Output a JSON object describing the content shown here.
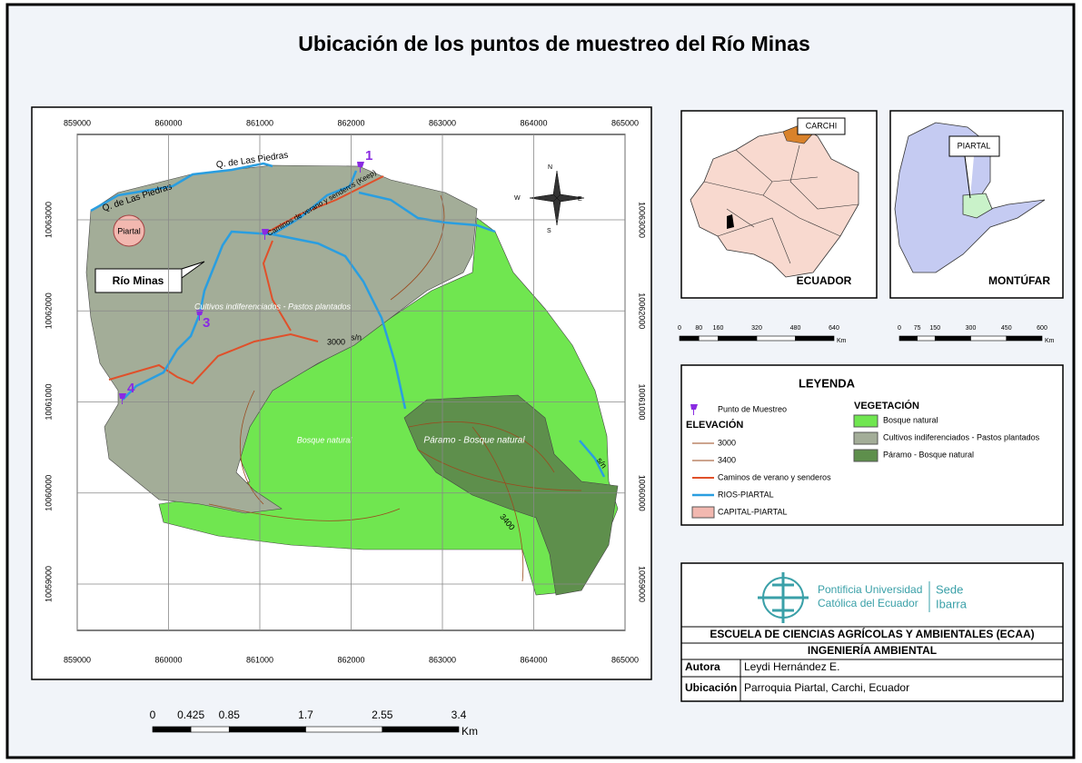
{
  "title": "Ubicación de los puntos de muestreo del Río Minas",
  "map": {
    "eastings": [
      859000,
      860000,
      861000,
      862000,
      863000,
      864000,
      865000
    ],
    "northings": [
      10063000,
      10062000,
      10061000,
      10060000,
      10059000
    ],
    "labels": {
      "stream": "Q. de Las Piedras",
      "road": "Caminos de verano y senderos (Keep)",
      "town": "Piartal",
      "river": "Río Minas",
      "sn": "s/n"
    },
    "points": [
      "1",
      "3",
      "4"
    ],
    "north": {
      "n": "N",
      "s": "S",
      "e": "E",
      "w": "W"
    }
  },
  "scale_bar": {
    "ticks": [
      0,
      0.425,
      0.85,
      1.7,
      2.55,
      3.4
    ],
    "unit": "Km"
  },
  "inset_ecuador": {
    "callout": "CARCHI",
    "name": "ECUADOR",
    "scale": {
      "ticks": [
        0,
        80,
        160,
        320,
        480,
        640
      ],
      "unit": "Km"
    }
  },
  "inset_montufar": {
    "callout": "PIARTAL",
    "name": "MONTÚFAR",
    "scale": {
      "ticks": [
        0,
        75,
        150,
        300,
        450,
        600
      ],
      "unit": "Km"
    }
  },
  "legend": {
    "title": "LEYENDA",
    "point": "Punto de Muestreo",
    "elevation": {
      "title": "ELEVACIÓN",
      "levels": [
        3000,
        3400
      ]
    },
    "roads": "Caminos de verano y senderos",
    "rivers": "RIOS-PIARTAL",
    "capital": "CAPITAL-PIARTAL",
    "vegetation": {
      "title": "VEGETACIÓN",
      "classes": [
        {
          "name": "Bosque natural",
          "color": "#70e650"
        },
        {
          "name": "Cultivos indiferenciados - Pastos plantados",
          "color": "#a3ad98"
        },
        {
          "name": "Páramo - Bosque natural",
          "color": "#5e8f4c"
        }
      ]
    }
  },
  "credits": {
    "university": [
      "Pontificia Universidad",
      "Católica del Ecuador"
    ],
    "campus": [
      "Sede",
      "Ibarra"
    ],
    "school": "ESCUELA DE CIENCIAS AGRÍCOLAS Y AMBIENTALES (ECAA)",
    "program": "INGENIERÍA AMBIENTAL",
    "rows": [
      [
        "Autora",
        "Leydi Hernández E."
      ],
      [
        "Ubicación",
        "Parroquia Piartal, Carchi, Ecuador"
      ]
    ]
  }
}
